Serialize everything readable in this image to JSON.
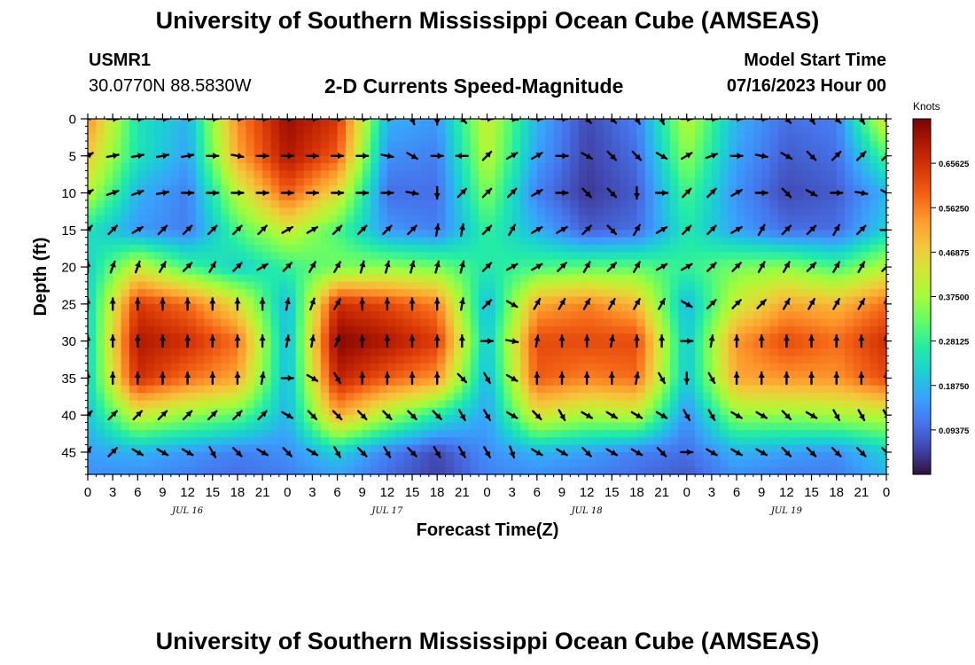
{
  "header": {
    "title": "University of Southern Mississippi Ocean Cube (AMSEAS)",
    "station_id": "USMR1",
    "coordinates": "30.0770N  88.5830W",
    "start_label": "Model Start Time",
    "start_value": "07/16/2023 Hour 00"
  },
  "footer": {
    "title": "University of Southern Mississippi Ocean Cube (AMSEAS)"
  },
  "chart_data": {
    "type": "heatmap",
    "title": "2-D Currents Speed-Magnitude",
    "xlabel": "Forecast Time(Z)",
    "ylabel": "Depth (ft)",
    "x_hours_range": [
      0,
      96
    ],
    "x_ticks_hours": [
      0,
      3,
      6,
      9,
      12,
      15,
      18,
      21,
      24,
      27,
      30,
      33,
      36,
      39,
      42,
      45,
      48,
      51,
      54,
      57,
      60,
      63,
      66,
      69,
      72,
      75,
      78,
      81,
      84,
      87,
      90,
      93,
      96
    ],
    "x_tick_labels": [
      "0",
      "3",
      "6",
      "9",
      "12",
      "15",
      "18",
      "21",
      "0",
      "3",
      "6",
      "9",
      "12",
      "15",
      "18",
      "21",
      "0",
      "3",
      "6",
      "9",
      "12",
      "15",
      "18",
      "21",
      "0",
      "3",
      "6",
      "9",
      "12",
      "15",
      "18",
      "21",
      "0"
    ],
    "day_labels": [
      {
        "text": "JUL 16",
        "hour": 12
      },
      {
        "text": "JUL 17",
        "hour": 36
      },
      {
        "text": "JUL 18",
        "hour": 60
      },
      {
        "text": "JUL 19",
        "hour": 84
      }
    ],
    "y_depth_range": [
      0,
      48
    ],
    "y_ticks": [
      0,
      5,
      10,
      15,
      20,
      25,
      30,
      35,
      40,
      45
    ],
    "y_tick_labels": [
      "0",
      "5",
      "10",
      "15",
      "20",
      "25",
      "30",
      "35",
      "40",
      "45"
    ],
    "colorbar": {
      "title": "Knots",
      "range": [
        0,
        0.75
      ],
      "tick_values": [
        0.09375,
        0.1875,
        0.28125,
        0.375,
        0.46875,
        0.5625,
        0.65625
      ],
      "tick_labels": [
        "0.09375",
        "0.18750",
        "0.28125",
        "0.37500",
        "0.46875",
        "0.56250",
        "0.65625"
      ],
      "colors": [
        "#30123b",
        "#4145ab",
        "#4675ed",
        "#39a2fc",
        "#1bcfd4",
        "#24eca6",
        "#61fc6c",
        "#a4fc3b",
        "#d1e834",
        "#f3c63a",
        "#fe9b2d",
        "#f36315",
        "#d93806",
        "#b11901",
        "#7a0402"
      ]
    },
    "depths": [
      0,
      5,
      10,
      15,
      20,
      25,
      30,
      35,
      40,
      45,
      48
    ],
    "time_hours": [
      0,
      6,
      12,
      18,
      24,
      30,
      36,
      42,
      48,
      54,
      60,
      66,
      72,
      78,
      84,
      90,
      96
    ],
    "speed_grid": [
      [
        0.55,
        0.25,
        0.18,
        0.55,
        0.72,
        0.65,
        0.18,
        0.15,
        0.42,
        0.18,
        0.06,
        0.12,
        0.4,
        0.18,
        0.1,
        0.12,
        0.45
      ],
      [
        0.48,
        0.25,
        0.16,
        0.52,
        0.7,
        0.6,
        0.14,
        0.12,
        0.4,
        0.16,
        0.05,
        0.1,
        0.36,
        0.16,
        0.08,
        0.1,
        0.3
      ],
      [
        0.4,
        0.18,
        0.12,
        0.4,
        0.6,
        0.45,
        0.1,
        0.1,
        0.35,
        0.12,
        0.04,
        0.08,
        0.3,
        0.14,
        0.06,
        0.08,
        0.18
      ],
      [
        0.25,
        0.15,
        0.12,
        0.3,
        0.42,
        0.3,
        0.15,
        0.12,
        0.28,
        0.18,
        0.08,
        0.1,
        0.26,
        0.16,
        0.1,
        0.1,
        0.22
      ],
      [
        0.22,
        0.42,
        0.3,
        0.22,
        0.28,
        0.34,
        0.36,
        0.34,
        0.26,
        0.3,
        0.32,
        0.32,
        0.28,
        0.34,
        0.36,
        0.3,
        0.4
      ],
      [
        0.22,
        0.64,
        0.58,
        0.45,
        0.18,
        0.66,
        0.62,
        0.56,
        0.18,
        0.52,
        0.56,
        0.5,
        0.18,
        0.42,
        0.52,
        0.5,
        0.58
      ],
      [
        0.22,
        0.7,
        0.66,
        0.58,
        0.18,
        0.74,
        0.7,
        0.64,
        0.2,
        0.62,
        0.62,
        0.62,
        0.2,
        0.54,
        0.62,
        0.58,
        0.66
      ],
      [
        0.22,
        0.66,
        0.58,
        0.52,
        0.18,
        0.68,
        0.6,
        0.54,
        0.18,
        0.6,
        0.56,
        0.58,
        0.2,
        0.52,
        0.54,
        0.54,
        0.62
      ],
      [
        0.2,
        0.42,
        0.36,
        0.32,
        0.18,
        0.52,
        0.38,
        0.26,
        0.16,
        0.44,
        0.38,
        0.4,
        0.14,
        0.36,
        0.36,
        0.38,
        0.4
      ],
      [
        0.16,
        0.18,
        0.15,
        0.12,
        0.14,
        0.22,
        0.12,
        0.06,
        0.14,
        0.18,
        0.16,
        0.12,
        0.1,
        0.18,
        0.16,
        0.14,
        0.22
      ],
      [
        0.14,
        0.14,
        0.12,
        0.1,
        0.12,
        0.16,
        0.1,
        0.05,
        0.12,
        0.14,
        0.12,
        0.1,
        0.08,
        0.14,
        0.12,
        0.12,
        0.18
      ]
    ],
    "vector_depths": [
      0,
      5,
      10,
      15,
      20,
      25,
      30,
      35,
      40,
      45
    ],
    "vector_times": [
      0,
      3,
      6,
      9,
      12,
      15,
      18,
      21,
      24,
      27,
      30,
      33,
      36,
      39,
      42,
      45,
      48,
      51,
      54,
      57,
      60,
      63,
      66,
      69,
      72,
      75,
      78,
      81,
      84,
      87,
      90,
      93,
      96
    ],
    "vector_direction_deg": [
      [
        45,
        90,
        90,
        90,
        90,
        90,
        90,
        90,
        90,
        90,
        90,
        90,
        90,
        160,
        180,
        135,
        90,
        100,
        90,
        90,
        135,
        135,
        150,
        160,
        90,
        90,
        90,
        90,
        135,
        150,
        135,
        150,
        150
      ],
      [
        60,
        80,
        80,
        80,
        80,
        90,
        100,
        90,
        90,
        90,
        90,
        90,
        100,
        120,
        90,
        270,
        45,
        60,
        60,
        90,
        120,
        135,
        135,
        120,
        60,
        70,
        90,
        100,
        120,
        135,
        45,
        45,
        45
      ],
      [
        60,
        70,
        70,
        80,
        90,
        90,
        90,
        90,
        90,
        90,
        90,
        90,
        90,
        100,
        180,
        45,
        45,
        45,
        60,
        90,
        135,
        135,
        180,
        90,
        45,
        45,
        60,
        90,
        135,
        120,
        90,
        100,
        120
      ],
      [
        45,
        45,
        60,
        45,
        45,
        45,
        45,
        45,
        60,
        60,
        45,
        45,
        45,
        45,
        10,
        10,
        45,
        30,
        60,
        60,
        45,
        135,
        30,
        60,
        45,
        45,
        60,
        30,
        45,
        45,
        30,
        45,
        90
      ],
      [
        0,
        20,
        20,
        30,
        45,
        30,
        45,
        60,
        45,
        30,
        30,
        15,
        15,
        15,
        15,
        15,
        45,
        60,
        60,
        45,
        30,
        45,
        30,
        60,
        60,
        45,
        45,
        30,
        30,
        45,
        30,
        30,
        45
      ],
      [
        0,
        0,
        0,
        0,
        0,
        0,
        0,
        0,
        10,
        20,
        30,
        0,
        0,
        0,
        0,
        10,
        45,
        120,
        30,
        30,
        30,
        30,
        30,
        30,
        120,
        45,
        45,
        45,
        30,
        30,
        30,
        30,
        0
      ],
      [
        0,
        0,
        0,
        0,
        0,
        0,
        0,
        0,
        10,
        10,
        20,
        0,
        0,
        0,
        0,
        0,
        90,
        100,
        10,
        0,
        0,
        10,
        0,
        0,
        90,
        10,
        0,
        0,
        0,
        0,
        0,
        0,
        0
      ],
      [
        0,
        0,
        0,
        0,
        0,
        0,
        0,
        10,
        90,
        120,
        150,
        0,
        0,
        0,
        0,
        135,
        150,
        120,
        0,
        0,
        0,
        0,
        10,
        150,
        180,
        150,
        0,
        0,
        0,
        0,
        0,
        0,
        0
      ],
      [
        45,
        45,
        45,
        45,
        45,
        45,
        45,
        45,
        120,
        135,
        135,
        135,
        135,
        135,
        135,
        150,
        150,
        120,
        135,
        150,
        120,
        120,
        120,
        120,
        150,
        150,
        120,
        120,
        135,
        120,
        150,
        150,
        150
      ],
      [
        30,
        45,
        120,
        120,
        120,
        150,
        135,
        120,
        135,
        120,
        150,
        135,
        150,
        135,
        150,
        150,
        150,
        160,
        120,
        120,
        135,
        120,
        120,
        135,
        90,
        120,
        120,
        120,
        135,
        135,
        135,
        135,
        135
      ]
    ]
  }
}
